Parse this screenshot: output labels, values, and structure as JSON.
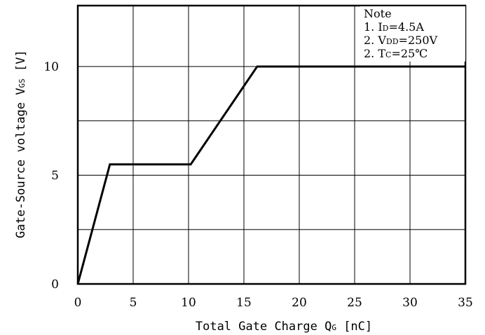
{
  "chart_data": {
    "type": "line",
    "title": "",
    "xlabel_text": "Total Gate Charge Q",
    "xlabel_sub": "G",
    "xlabel_unit": " [nC]",
    "ylabel_text": "Gate-Source voltage V",
    "ylabel_sub": "GS",
    "ylabel_unit": " [V]",
    "xlim": [
      0,
      35
    ],
    "ylim": [
      0,
      12.8
    ],
    "xticks": [
      0,
      5,
      10,
      15,
      20,
      25,
      30,
      35
    ],
    "yticks": [
      0,
      5,
      10
    ],
    "x_grid": [
      0,
      5,
      10,
      15,
      20,
      25,
      30,
      35
    ],
    "y_grid": [
      0,
      2.5,
      5,
      7.5,
      10,
      12.8
    ],
    "grid": true,
    "series": [
      {
        "x": [
          0,
          2.9,
          10.2,
          16.2,
          35
        ],
        "y": [
          0,
          5.5,
          5.5,
          10,
          10
        ]
      }
    ],
    "legend": {
      "placement": "top-right",
      "title": "Note",
      "lines": [
        {
          "prefix": "1. I",
          "sub": "D",
          "rest": "=4.5A"
        },
        {
          "prefix": "2. V",
          "sub": "DD",
          "rest": "=250V"
        },
        {
          "prefix": "2. T",
          "sub": "C",
          "rest": "=25℃"
        }
      ]
    }
  }
}
